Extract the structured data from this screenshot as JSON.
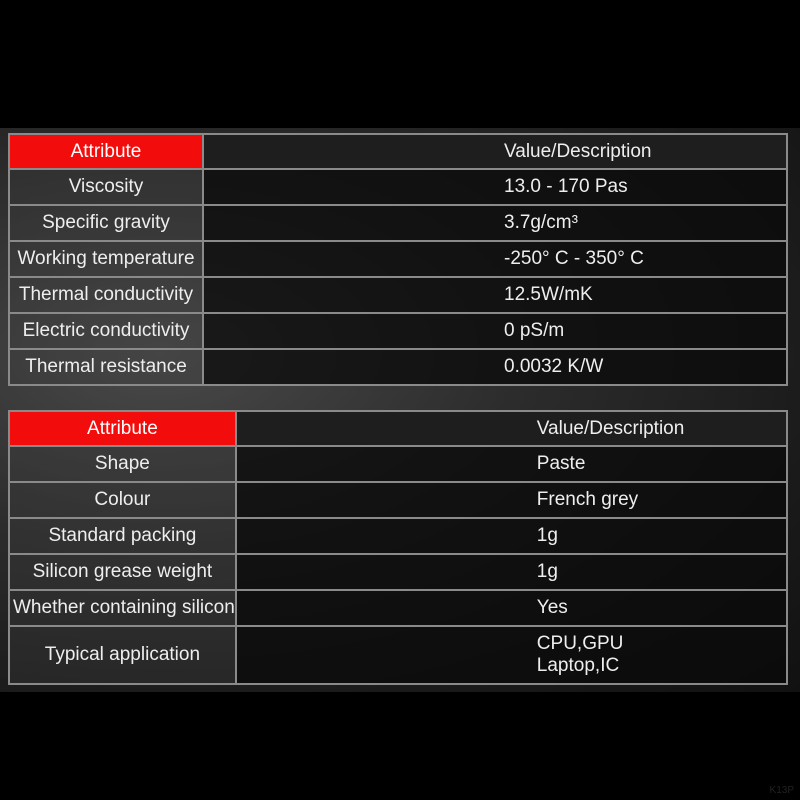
{
  "table1": {
    "header": {
      "attribute": "Attribute",
      "value": "Value/Description"
    },
    "rows": [
      {
        "attribute": "Viscosity",
        "value": "13.0 - 170 Pas"
      },
      {
        "attribute": "Specific gravity",
        "value": "3.7g/cm³"
      },
      {
        "attribute": "Working temperature",
        "value": "-250° C - 350° C"
      },
      {
        "attribute": "Thermal conductivity",
        "value": "12.5W/mK"
      },
      {
        "attribute": "Electric conductivity",
        "value": "0 pS/m"
      },
      {
        "attribute": "Thermal resistance",
        "value": "0.0032 K/W"
      }
    ]
  },
  "table2": {
    "header": {
      "attribute": "Attribute",
      "value": "Value/Description"
    },
    "rows": [
      {
        "attribute": "Shape",
        "value": "Paste"
      },
      {
        "attribute": "Colour",
        "value": "French grey"
      },
      {
        "attribute": "Standard packing",
        "value": "1g"
      },
      {
        "attribute": "Silicon grease weight",
        "value": "1g"
      },
      {
        "attribute": "Whether containing silicon",
        "value": "Yes"
      },
      {
        "attribute": "Typical application",
        "value_lines": [
          "CPU,GPU",
          "Laptop,IC"
        ]
      }
    ]
  },
  "colors": {
    "header_accent": "#f20c0c",
    "background": "#000000"
  },
  "watermark": "K13P"
}
